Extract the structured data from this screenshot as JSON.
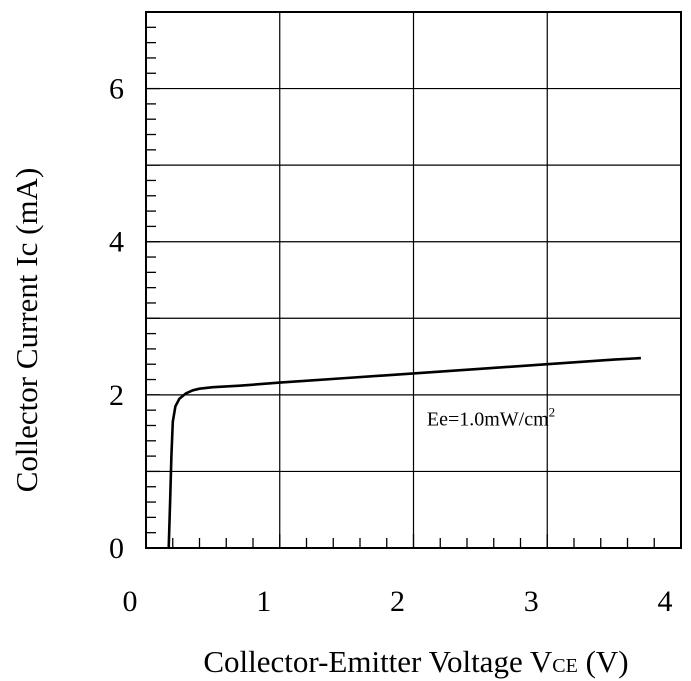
{
  "chart_data": {
    "type": "line",
    "title": "",
    "xlabel": {
      "main": "Collector-Emitter Voltage V",
      "sub": "CE",
      "unit": " (V)"
    },
    "ylabel": "Collector Current Ic (mA)",
    "xlim": [
      0,
      4
    ],
    "ylim": [
      0,
      7
    ],
    "x_ticks": [
      0,
      1,
      2,
      3,
      4
    ],
    "y_ticks": [
      0,
      2,
      4,
      6
    ],
    "x_tick_labels": [
      "0",
      "1",
      "2",
      "3",
      "4"
    ],
    "y_tick_labels": [
      "0",
      "2",
      "4",
      "6"
    ],
    "x_grid_step": 1,
    "y_grid_step": 1,
    "grid": true,
    "series": [
      {
        "x": [
          0.17,
          0.18,
          0.19,
          0.2,
          0.22,
          0.25,
          0.3,
          0.35,
          0.4,
          0.5,
          0.7,
          1.0,
          1.5,
          2.0,
          2.5,
          3.0,
          3.5,
          3.7
        ],
        "y": [
          0.0,
          0.6,
          1.2,
          1.65,
          1.85,
          1.95,
          2.02,
          2.06,
          2.08,
          2.1,
          2.12,
          2.16,
          2.22,
          2.28,
          2.34,
          2.4,
          2.46,
          2.48
        ]
      }
    ],
    "annotations": [
      {
        "text": "Ee=1.0mW/cm",
        "sup": "2",
        "x": 2.1,
        "y": 1.6
      }
    ]
  }
}
